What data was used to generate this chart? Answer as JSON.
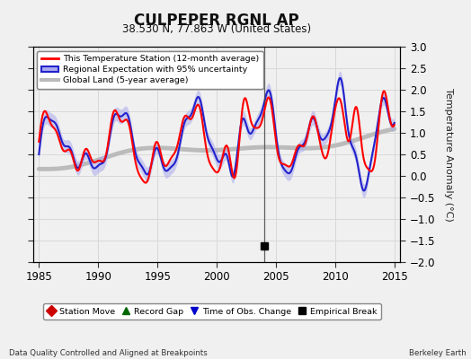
{
  "title": "CULPEPER RGNL AP",
  "subtitle": "38.530 N, 77.863 W (United States)",
  "xlabel_left": "Data Quality Controlled and Aligned at Breakpoints",
  "xlabel_right": "Berkeley Earth",
  "ylabel": "Temperature Anomaly (°C)",
  "xlim": [
    1984.5,
    2015.5
  ],
  "ylim": [
    -2.0,
    3.0
  ],
  "xticks": [
    1985,
    1990,
    1995,
    2000,
    2005,
    2010,
    2015
  ],
  "yticks": [
    -2.0,
    -1.5,
    -1.0,
    -0.5,
    0.0,
    0.5,
    1.0,
    1.5,
    2.0,
    2.5,
    3.0
  ],
  "background_color": "#f0f0f0",
  "plot_bg_color": "#f0f0f0",
  "grid_color": "#d8d8d8",
  "vline_x": 2004.0,
  "vline_color": "#444444",
  "empirical_break_x": 2004.0,
  "empirical_break_y": -1.62,
  "station_color": "#ff0000",
  "regional_color": "#2222cc",
  "regional_fill_color": "#aaaaee",
  "global_color": "#bbbbbb",
  "legend_items": [
    {
      "label": "This Temperature Station (12-month average)",
      "color": "#ff0000",
      "lw": 2
    },
    {
      "label": "Regional Expectation with 95% uncertainty",
      "color": "#2222cc",
      "lw": 2
    },
    {
      "label": "Global Land (5-year average)",
      "color": "#bbbbbb",
      "lw": 3
    }
  ],
  "bottom_legend": [
    {
      "label": "Station Move",
      "color": "#cc0000",
      "marker": "D"
    },
    {
      "label": "Record Gap",
      "color": "#006600",
      "marker": "^"
    },
    {
      "label": "Time of Obs. Change",
      "color": "#0000cc",
      "marker": "v"
    },
    {
      "label": "Empirical Break",
      "color": "#000000",
      "marker": "s"
    }
  ]
}
